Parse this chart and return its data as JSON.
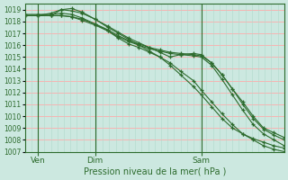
{
  "title": "",
  "xlabel": "Pression niveau de la mer( hPa )",
  "ylabel": "",
  "background_color": "#cce8e0",
  "grid_color_h": "#ffaaaa",
  "grid_color_v": "#b0d8cc",
  "line_color": "#2d6b2d",
  "marker_color": "#2d6b2d",
  "ylim": [
    1007,
    1019.5
  ],
  "yticks": [
    1007,
    1008,
    1009,
    1010,
    1011,
    1012,
    1013,
    1014,
    1015,
    1016,
    1017,
    1018,
    1019
  ],
  "xtick_labels": [
    "Ven",
    "Dim",
    "Sam"
  ],
  "xtick_positions": [
    0.05,
    0.27,
    0.68
  ],
  "series": [
    {
      "x": [
        0.0,
        0.05,
        0.1,
        0.14,
        0.18,
        0.22,
        0.27,
        0.32,
        0.36,
        0.4,
        0.44,
        0.48,
        0.52,
        0.56,
        0.6,
        0.65,
        0.68,
        0.72,
        0.76,
        0.8,
        0.84,
        0.88,
        0.92,
        0.96,
        1.0
      ],
      "y": [
        1018.5,
        1018.5,
        1018.5,
        1019.0,
        1019.1,
        1018.8,
        1018.2,
        1017.5,
        1017.0,
        1016.5,
        1016.0,
        1015.5,
        1015.0,
        1014.3,
        1013.5,
        1012.5,
        1011.8,
        1010.8,
        1009.8,
        1009.0,
        1008.5,
        1008.1,
        1007.8,
        1007.5,
        1007.3
      ]
    },
    {
      "x": [
        0.0,
        0.05,
        0.1,
        0.14,
        0.18,
        0.22,
        0.27,
        0.32,
        0.36,
        0.4,
        0.44,
        0.48,
        0.52,
        0.56,
        0.6,
        0.65,
        0.68,
        0.72,
        0.76,
        0.8,
        0.84,
        0.88,
        0.92,
        0.96,
        1.0
      ],
      "y": [
        1018.5,
        1018.5,
        1018.7,
        1019.0,
        1018.9,
        1018.7,
        1018.2,
        1017.6,
        1017.1,
        1016.6,
        1016.2,
        1015.8,
        1015.4,
        1015.0,
        1015.2,
        1015.3,
        1015.2,
        1014.5,
        1013.5,
        1012.3,
        1011.2,
        1010.0,
        1009.0,
        1008.6,
        1008.2
      ]
    },
    {
      "x": [
        0.0,
        0.05,
        0.1,
        0.14,
        0.18,
        0.22,
        0.27,
        0.32,
        0.36,
        0.4,
        0.44,
        0.48,
        0.52,
        0.56,
        0.6,
        0.65,
        0.68,
        0.72,
        0.76,
        0.8,
        0.84,
        0.88,
        0.92,
        0.96,
        1.0
      ],
      "y": [
        1018.6,
        1018.6,
        1018.6,
        1018.7,
        1018.6,
        1018.3,
        1017.8,
        1017.2,
        1016.6,
        1016.1,
        1015.8,
        1015.4,
        1015.0,
        1014.5,
        1013.8,
        1013.0,
        1012.2,
        1011.2,
        1010.2,
        1009.3,
        1008.5,
        1008.0,
        1007.5,
        1007.2,
        1007.0
      ]
    },
    {
      "x": [
        0.0,
        0.05,
        0.1,
        0.14,
        0.18,
        0.22,
        0.27,
        0.32,
        0.36,
        0.4,
        0.44,
        0.48,
        0.52,
        0.56,
        0.6,
        0.65,
        0.68,
        0.72,
        0.76,
        0.8,
        0.84,
        0.88,
        0.92,
        0.96,
        1.0
      ],
      "y": [
        1018.5,
        1018.5,
        1018.5,
        1018.5,
        1018.4,
        1018.2,
        1017.8,
        1017.3,
        1016.8,
        1016.4,
        1016.1,
        1015.8,
        1015.6,
        1015.4,
        1015.3,
        1015.2,
        1015.1,
        1014.5,
        1013.5,
        1012.3,
        1011.0,
        1009.8,
        1008.9,
        1008.4,
        1008.0
      ]
    },
    {
      "x": [
        0.0,
        0.05,
        0.1,
        0.14,
        0.18,
        0.22,
        0.27,
        0.32,
        0.36,
        0.4,
        0.44,
        0.48,
        0.52,
        0.56,
        0.6,
        0.65,
        0.68,
        0.72,
        0.76,
        0.8,
        0.84,
        0.88,
        0.92,
        0.96,
        1.0
      ],
      "y": [
        1018.5,
        1018.5,
        1018.5,
        1018.5,
        1018.4,
        1018.1,
        1017.7,
        1017.2,
        1016.7,
        1016.3,
        1016.0,
        1015.7,
        1015.5,
        1015.3,
        1015.2,
        1015.1,
        1015.0,
        1014.3,
        1013.1,
        1011.8,
        1010.5,
        1009.3,
        1008.5,
        1008.0,
        1007.5
      ]
    }
  ]
}
